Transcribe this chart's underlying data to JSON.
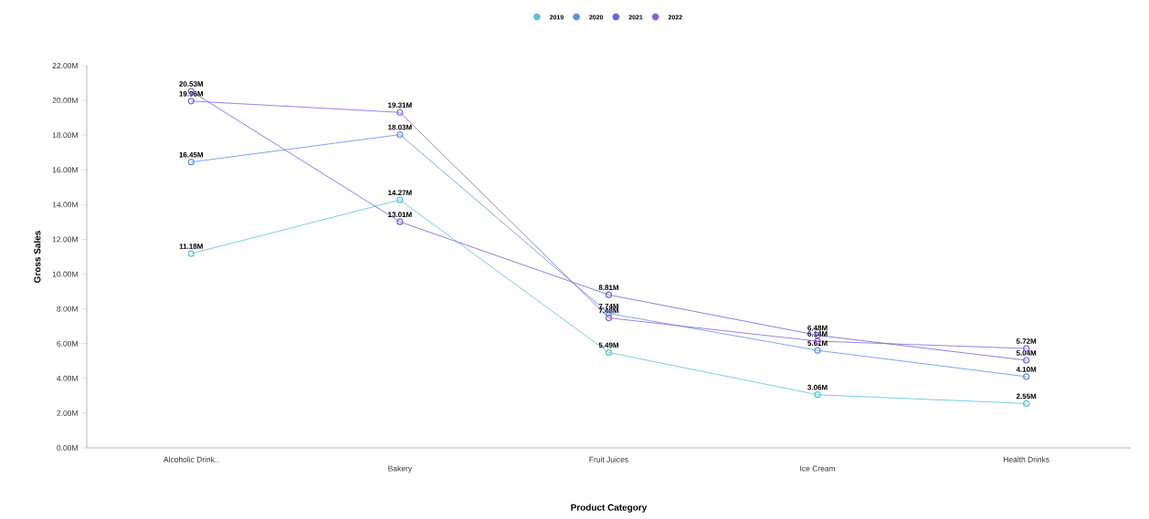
{
  "chart_data": {
    "type": "line",
    "xlabel": "Product Category",
    "ylabel": "Gross Sales",
    "categories": [
      "Alcoholic Drink..",
      "Bakery",
      "Fruit Juices",
      "Ice Cream",
      "Health Drinks"
    ],
    "series": [
      {
        "name": "2019",
        "color": "#5bc0de",
        "values": [
          11.18,
          14.27,
          5.49,
          3.06,
          2.55
        ],
        "value_labels": [
          "11.18M",
          "14.27M",
          "5.49M",
          "3.06M",
          "2.55M"
        ]
      },
      {
        "name": "2020",
        "color": "#5b92e5",
        "values": [
          16.45,
          18.03,
          7.74,
          5.61,
          4.1
        ],
        "value_labels": [
          "16.45M",
          "18.03M",
          "7.74M",
          "5.61M",
          "4.10M"
        ]
      },
      {
        "name": "2021",
        "color": "#6563e0",
        "values": [
          20.53,
          13.01,
          8.81,
          6.48,
          5.04
        ],
        "value_labels": [
          "20.53M",
          "13.01M",
          "8.81M",
          "6.48M",
          "5.04M"
        ]
      },
      {
        "name": "2022",
        "color": "#8a5ee0",
        "values": [
          19.96,
          19.31,
          7.48,
          6.14,
          5.72
        ],
        "value_labels": [
          "19.96M",
          "19.31M",
          "7.48M",
          "6.14M",
          "5.72M"
        ]
      }
    ],
    "ylim": [
      0,
      22
    ],
    "yticks": [
      {
        "value": 0,
        "label": "0.00M"
      },
      {
        "value": 2,
        "label": "2.00M"
      },
      {
        "value": 4,
        "label": "4.00M"
      },
      {
        "value": 6,
        "label": "6.00M"
      },
      {
        "value": 8,
        "label": "8.00M"
      },
      {
        "value": 10,
        "label": "10.00M"
      },
      {
        "value": 12,
        "label": "12.00M"
      },
      {
        "value": 14,
        "label": "14.00M"
      },
      {
        "value": 16,
        "label": "16.00M"
      },
      {
        "value": 18,
        "label": "18.00M"
      },
      {
        "value": 20,
        "label": "20.00M"
      },
      {
        "value": 22,
        "label": "22.00M"
      }
    ],
    "legend": "top",
    "marker": "circle",
    "line_style": "solid",
    "grid": false
  }
}
